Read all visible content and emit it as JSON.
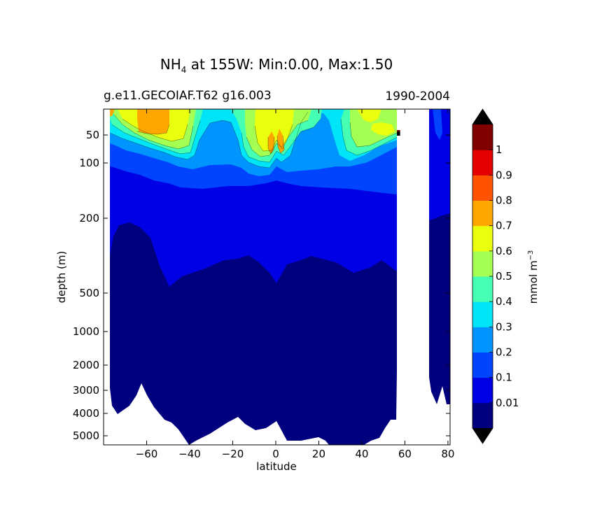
{
  "chart_data": {
    "type": "contour",
    "title": {
      "prefix": "NH",
      "subscript": "4",
      "suffix": " at 155W: Min:0.00, Max:1.50"
    },
    "left_subtitle": "g.e11.GECOIAF.T62 g16.003",
    "right_subtitle": "1990-2004",
    "xlabel": "latitude",
    "ylabel": "depth (m)",
    "xlim": [
      -80,
      81
    ],
    "x_ticks": [
      {
        "value": -60,
        "label": "−60"
      },
      {
        "value": -40,
        "label": "−40"
      },
      {
        "value": -20,
        "label": "−20"
      },
      {
        "value": 0,
        "label": "0"
      },
      {
        "value": 20,
        "label": "20"
      },
      {
        "value": 40,
        "label": "40"
      },
      {
        "value": 60,
        "label": "60"
      },
      {
        "value": 80,
        "label": "80"
      }
    ],
    "y_ticks": [
      {
        "value": 50,
        "label": "50"
      },
      {
        "value": 100,
        "label": "100"
      },
      {
        "value": 200,
        "label": "200"
      },
      {
        "value": 500,
        "label": "500"
      },
      {
        "value": 1000,
        "label": "1000"
      },
      {
        "value": 2000,
        "label": "2000"
      },
      {
        "value": 3000,
        "label": "3000"
      },
      {
        "value": 4000,
        "label": "4000"
      },
      {
        "value": 5000,
        "label": "5000"
      }
    ],
    "colorbar": {
      "label": "mmol m",
      "label_superscript": "−3",
      "levels": [
        0,
        0.01,
        0.1,
        0.2,
        0.3,
        0.4,
        0.5,
        0.6,
        0.7,
        0.8,
        0.9,
        1,
        1.1
      ],
      "tick_labels": [
        "0.01",
        "0.1",
        "0.2",
        "0.3",
        "0.4",
        "0.5",
        "0.6",
        "0.7",
        "0.8",
        "0.9",
        "1"
      ],
      "colors": [
        "#00007f",
        "#0000e5",
        "#0044ff",
        "#0094ff",
        "#00e4f8",
        "#45ffb2",
        "#a5ff52",
        "#eaff0d",
        "#ffa700",
        "#ff5300",
        "#e50000",
        "#800000"
      ],
      "extend": "both",
      "under_color": "#000000",
      "over_color": "#000000"
    }
  }
}
